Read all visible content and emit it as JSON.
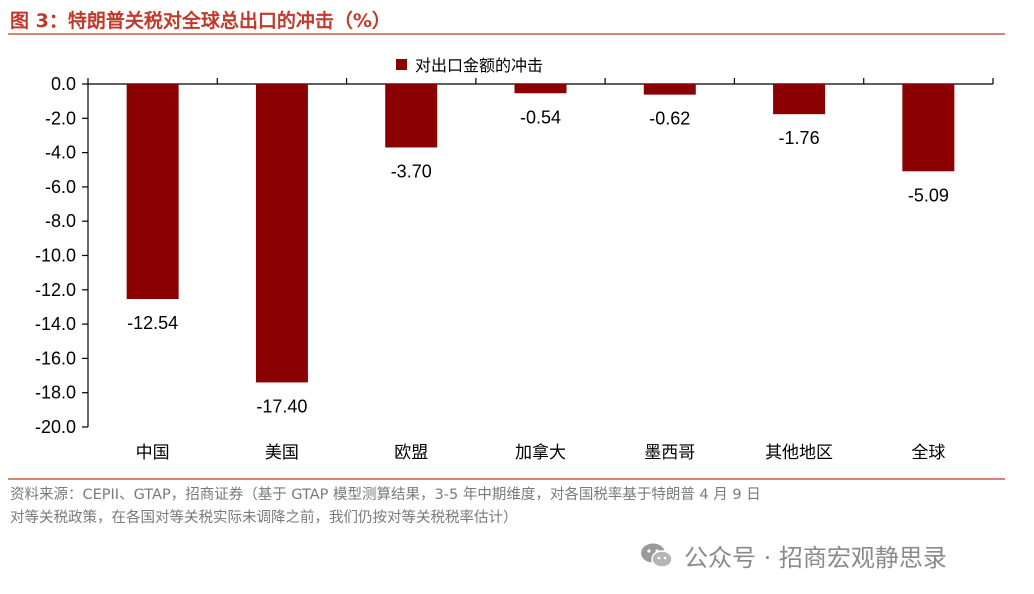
{
  "figure": {
    "title": "图 3：特朗普关税对全球总出口的冲击（%）"
  },
  "chart_data": {
    "type": "bar",
    "categories": [
      "中国",
      "美国",
      "欧盟",
      "加拿大",
      "墨西哥",
      "其他地区",
      "全球"
    ],
    "series": [
      {
        "name": "对出口金额的冲击",
        "values": [
          -12.54,
          -17.4,
          -3.7,
          -0.54,
          -0.62,
          -1.76,
          -5.09
        ],
        "color": "#8b0000"
      }
    ],
    "data_labels": [
      "-12.54",
      "-17.40",
      "-3.70",
      "-0.54",
      "-0.62",
      "-1.76",
      "-5.09"
    ],
    "y_ticks": [
      "0.0",
      "-2.0",
      "-4.0",
      "-6.0",
      "-8.0",
      "-10.0",
      "-12.0",
      "-14.0",
      "-16.0",
      "-18.0",
      "-20.0"
    ],
    "ylim": [
      -20,
      0
    ],
    "legend_position": "top-center",
    "grid": false
  },
  "source": {
    "line1": "资料来源：CEPII、GTAP，招商证券（基于 GTAP 模型测算结果，3-5 年中期维度，对各国税率基于特朗普 4 月 9 日",
    "line2": "对等关税政策，在各国对等关税实际未调降之前，我们仍按对等关税税率估计）"
  },
  "watermark": {
    "icon": "wechat-icon",
    "text": "公众号 · 招商宏观静思录"
  },
  "colors": {
    "accent": "#c0392b",
    "bar": "#8b0000",
    "rule": "#d9826e",
    "muted_text": "#7a7a7a"
  }
}
